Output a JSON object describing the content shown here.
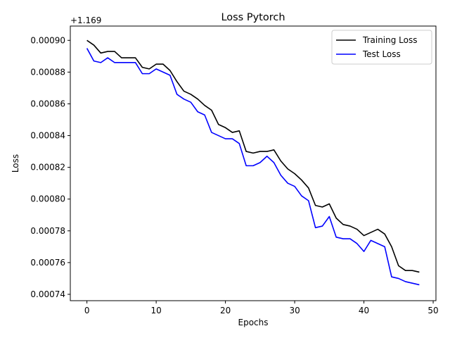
{
  "chart_data": {
    "type": "line",
    "title": "Loss Pytorch",
    "xlabel": "Epochs",
    "ylabel": "Loss",
    "offset_text": "+1.169",
    "y_offset": 1.169,
    "xlim": [
      -2.4,
      50.4
    ],
    "ylim": [
      0.000736,
      0.000909
    ],
    "xticks": [
      0,
      10,
      20,
      30,
      40,
      50
    ],
    "xtick_labels": [
      "0",
      "10",
      "20",
      "30",
      "40",
      "50"
    ],
    "yticks": [
      0.00074,
      0.00076,
      0.00078,
      0.0008,
      0.00082,
      0.00084,
      0.00086,
      0.00088,
      0.0009
    ],
    "ytick_labels": [
      "0.00074",
      "0.00076",
      "0.00078",
      "0.00080",
      "0.00082",
      "0.00084",
      "0.00086",
      "0.00088",
      "0.00090"
    ],
    "grid": false,
    "legend_position": "top-right",
    "x": [
      0,
      1,
      2,
      3,
      4,
      5,
      6,
      7,
      8,
      9,
      10,
      11,
      12,
      13,
      14,
      15,
      16,
      17,
      18,
      19,
      20,
      21,
      22,
      23,
      24,
      25,
      26,
      27,
      28,
      29,
      30,
      31,
      32,
      33,
      34,
      35,
      36,
      37,
      38,
      39,
      40,
      41,
      42,
      43,
      44,
      45,
      46,
      47,
      48
    ],
    "series": [
      {
        "name": "Training Loss",
        "color": "#000000",
        "values": [
          0.0009,
          0.000897,
          0.000892,
          0.000893,
          0.000893,
          0.000889,
          0.000889,
          0.000889,
          0.000883,
          0.000882,
          0.000885,
          0.000885,
          0.000881,
          0.000874,
          0.000868,
          0.000866,
          0.000863,
          0.000859,
          0.000856,
          0.000847,
          0.000845,
          0.000842,
          0.000843,
          0.00083,
          0.000829,
          0.00083,
          0.00083,
          0.000831,
          0.000824,
          0.000819,
          0.000816,
          0.000812,
          0.000807,
          0.000796,
          0.000795,
          0.000797,
          0.000788,
          0.000784,
          0.000783,
          0.000781,
          0.000777,
          0.000779,
          0.000781,
          0.000778,
          0.00077,
          0.000758,
          0.000755,
          0.000755,
          0.000754
        ]
      },
      {
        "name": "Test Loss",
        "color": "#0000ff",
        "values": [
          0.000895,
          0.000887,
          0.000886,
          0.000889,
          0.000886,
          0.000886,
          0.000886,
          0.000886,
          0.000879,
          0.000879,
          0.000882,
          0.00088,
          0.000878,
          0.000866,
          0.000863,
          0.000861,
          0.000855,
          0.000853,
          0.000842,
          0.00084,
          0.000838,
          0.000838,
          0.000835,
          0.000821,
          0.000821,
          0.000823,
          0.000827,
          0.000823,
          0.000815,
          0.00081,
          0.000808,
          0.000802,
          0.000799,
          0.000782,
          0.000783,
          0.000789,
          0.000776,
          0.000775,
          0.000775,
          0.000772,
          0.000767,
          0.000774,
          0.000772,
          0.00077,
          0.000751,
          0.00075,
          0.000748,
          0.000747,
          0.000746
        ]
      }
    ]
  }
}
